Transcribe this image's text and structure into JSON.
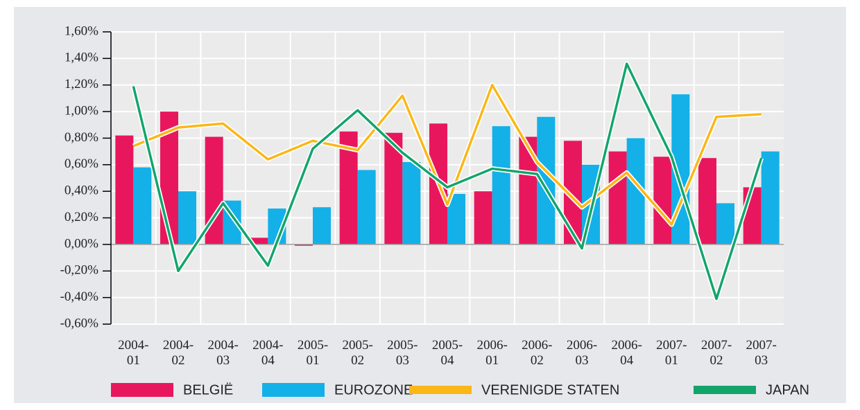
{
  "chart_data": {
    "type": "bar-line",
    "categories": [
      "2004-01",
      "2004-02",
      "2004-03",
      "2004-04",
      "2005-01",
      "2005-02",
      "2005-03",
      "2005-04",
      "2006-01",
      "2006-02",
      "2006-03",
      "2006-04",
      "2007-01",
      "2007-02",
      "2007-03"
    ],
    "series": [
      {
        "name": "BELGIË",
        "type": "bar",
        "color": "#e8175d",
        "values": [
          0.82,
          1.0,
          0.81,
          0.05,
          -0.01,
          0.85,
          0.84,
          0.91,
          0.4,
          0.81,
          0.78,
          0.7,
          0.66,
          0.65,
          0.43
        ]
      },
      {
        "name": "EUROZONE",
        "type": "bar",
        "color": "#14b0e8",
        "values": [
          0.58,
          0.4,
          0.33,
          0.27,
          0.28,
          0.56,
          0.62,
          0.38,
          0.89,
          0.96,
          0.6,
          0.8,
          1.13,
          0.31,
          0.7
        ]
      },
      {
        "name": "VERENIGDE STATEN",
        "type": "line",
        "color": "#fbb717",
        "values": [
          0.74,
          0.88,
          0.91,
          0.64,
          0.78,
          0.71,
          1.12,
          0.3,
          1.2,
          0.62,
          0.28,
          0.54,
          0.15,
          0.96,
          0.98
        ]
      },
      {
        "name": "JAPAN",
        "type": "line",
        "color": "#12a56b",
        "values": [
          1.19,
          -0.2,
          0.31,
          -0.16,
          0.72,
          1.01,
          0.69,
          0.43,
          0.57,
          0.53,
          -0.03,
          1.36,
          0.66,
          -0.41,
          0.65
        ]
      }
    ],
    "ylim": [
      -0.6,
      1.6
    ],
    "yticks": [
      {
        "value": -0.6,
        "label": "-0,60%"
      },
      {
        "value": -0.4,
        "label": "-0,40%"
      },
      {
        "value": -0.2,
        "label": "-0,20%"
      },
      {
        "value": 0,
        "label": "0,00%"
      },
      {
        "value": 0.2,
        "label": "0,20%"
      },
      {
        "value": 0.4,
        "label": "0,40%"
      },
      {
        "value": 0.6,
        "label": "0,60%"
      },
      {
        "value": 0.8,
        "label": "0,80%"
      },
      {
        "value": 1.0,
        "label": "1,00%"
      },
      {
        "value": 1.2,
        "label": "1,20%"
      },
      {
        "value": 1.4,
        "label": "1,40%"
      },
      {
        "value": 1.6,
        "label": "1,60%"
      }
    ],
    "grid": true
  }
}
